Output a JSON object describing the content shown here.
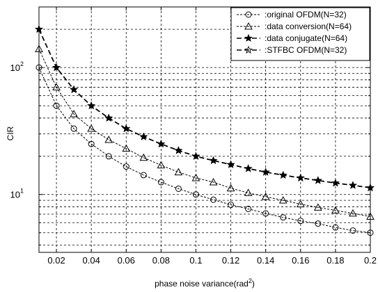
{
  "chart_data": {
    "type": "line",
    "title": "",
    "xlabel": "phase noise variance(rad",
    "xlabel_sup": "2",
    "xlabel_close": ")",
    "ylabel": "CIR",
    "xscale": "linear",
    "yscale": "log",
    "xlim": [
      0.01,
      0.2
    ],
    "ylim": [
      3.5,
      300
    ],
    "grid": true,
    "legend_position": "top-right",
    "x_ticks": [
      0.02,
      0.04,
      0.06,
      0.08,
      0.1,
      0.12,
      0.14,
      0.16,
      0.18,
      0.2
    ],
    "x_tick_labels": [
      "0.02",
      "0.04",
      "0.06",
      "0.08",
      "0.1",
      "0.12",
      "0.14",
      "0.16",
      "0.18",
      "0.2"
    ],
    "y_tick_labels": [
      {
        "value": 10,
        "base": "10",
        "exp": "1"
      },
      {
        "value": 100,
        "base": "10",
        "exp": "2"
      }
    ],
    "x": [
      0.01,
      0.02,
      0.03,
      0.04,
      0.05,
      0.06,
      0.07,
      0.08,
      0.09,
      0.1,
      0.11,
      0.12,
      0.13,
      0.14,
      0.15,
      0.16,
      0.17,
      0.18,
      0.19,
      0.2
    ],
    "series": [
      {
        "name": ":original OFDM(N=32)",
        "marker": "circle",
        "values": [
          100,
          50,
          33,
          25,
          20,
          16.6,
          14.2,
          12.5,
          11.1,
          10,
          9.1,
          8.3,
          7.7,
          7.1,
          6.6,
          6.2,
          5.9,
          5.5,
          5.2,
          5.0
        ]
      },
      {
        "name": ":data conversion(N=64)",
        "marker": "triangle",
        "values": [
          140,
          70,
          43,
          33,
          27,
          23,
          19.5,
          17,
          15,
          13.5,
          12.5,
          11.2,
          10.3,
          9.6,
          9.0,
          8.4,
          7.9,
          7.5,
          7.1,
          6.7
        ]
      },
      {
        "name": ":data conjugate(N=64)",
        "marker": "star-filled",
        "values": [
          200,
          100,
          67,
          50,
          40,
          33,
          28.5,
          25,
          22.2,
          20,
          18.5,
          17.2,
          16,
          15,
          14.2,
          13.5,
          12.9,
          12.3,
          11.8,
          11.3
        ]
      },
      {
        "name": ":STFBC OFDM(N=32)",
        "marker": "star",
        "values": [
          200,
          100,
          67,
          50,
          40,
          33,
          28.5,
          25,
          22.2,
          20,
          18.5,
          17.2,
          16,
          15,
          14.2,
          13.5,
          12.9,
          12.3,
          11.8,
          11.3
        ]
      }
    ]
  }
}
